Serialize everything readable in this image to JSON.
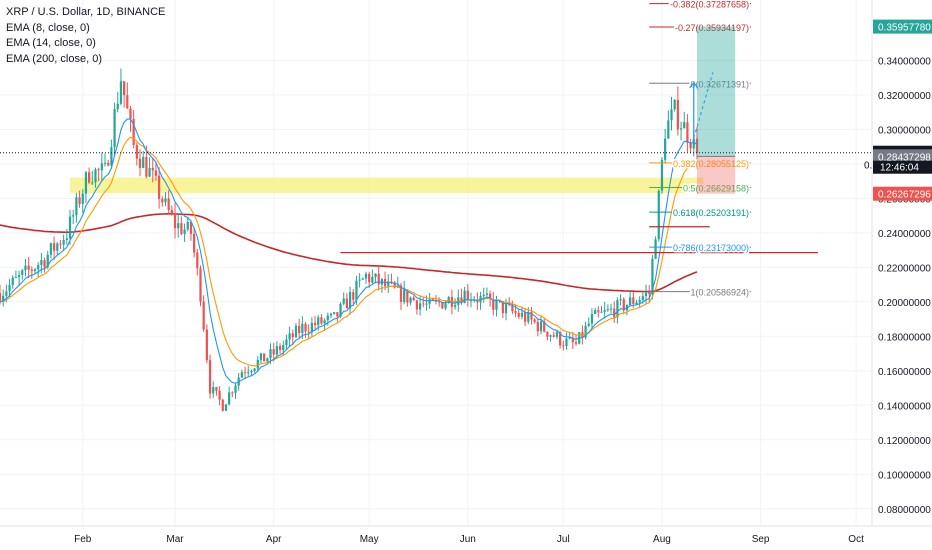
{
  "header": {
    "symbol_line": "XRP / U.S. Dollar, 1D, BINANCE",
    "ema_lines": [
      "EMA (8, close, 0)",
      "EMA (14, close, 0)",
      "EMA (200, close, 0)"
    ]
  },
  "colors": {
    "up": "#26a69a",
    "down": "#ef5350",
    "ema8": "#2196f3",
    "ema14": "#ff9800",
    "ema200": "#c62828",
    "zone": "#f5f07a",
    "price_tag": "#131722",
    "target_tag": "#26a69a",
    "stop_tag": "#ef5350",
    "grey_tag": "#787b86"
  },
  "chart_data": {
    "type": "candlestick",
    "title": "XRP / U.S. Dollar, 1D, BINANCE",
    "ylim": [
      0.07,
      0.375
    ],
    "y_ticks": [
      "0.34000000",
      "0.32000000",
      "0.30000000",
      "0.28000000",
      "0.26000000",
      "0.24000000",
      "0.22000000",
      "0.20000000",
      "0.18000000",
      "0.16000000",
      "0.14000000",
      "0.12000000",
      "0.10000000",
      "0.08000000"
    ],
    "y_tick_values": [
      0.34,
      0.32,
      0.3,
      0.28,
      0.26,
      0.24,
      0.22,
      0.2,
      0.18,
      0.16,
      0.14,
      0.12,
      0.1,
      0.08
    ],
    "x_ticks": [
      "Feb",
      "Mar",
      "Apr",
      "May",
      "Jun",
      "Jul",
      "Aug",
      "Sep",
      "Oct"
    ],
    "x_tick_dates": [
      "2020-02-01",
      "2020-03-01",
      "2020-04-01",
      "2020-05-01",
      "2020-06-01",
      "2020-07-01",
      "2020-08-01",
      "2020-09-01",
      "2020-10-01"
    ],
    "x_range": [
      "2020-01-06",
      "2020-10-06"
    ],
    "price_path": [
      [
        "2020-01-06",
        0.205
      ],
      [
        "2020-01-13",
        0.215
      ],
      [
        "2020-01-20",
        0.225
      ],
      [
        "2020-01-27",
        0.24
      ],
      [
        "2020-02-03",
        0.275
      ],
      [
        "2020-02-08",
        0.275
      ],
      [
        "2020-02-13",
        0.33
      ],
      [
        "2020-02-17",
        0.29
      ],
      [
        "2020-02-22",
        0.275
      ],
      [
        "2020-02-27",
        0.255
      ],
      [
        "2020-03-01",
        0.245
      ],
      [
        "2020-03-06",
        0.24
      ],
      [
        "2020-03-09",
        0.205
      ],
      [
        "2020-03-12",
        0.15
      ],
      [
        "2020-03-16",
        0.14
      ],
      [
        "2020-03-22",
        0.16
      ],
      [
        "2020-04-01",
        0.17
      ],
      [
        "2020-04-10",
        0.185
      ],
      [
        "2020-04-20",
        0.19
      ],
      [
        "2020-04-30",
        0.215
      ],
      [
        "2020-05-10",
        0.205
      ],
      [
        "2020-05-20",
        0.197
      ],
      [
        "2020-05-31",
        0.205
      ],
      [
        "2020-06-10",
        0.198
      ],
      [
        "2020-06-20",
        0.19
      ],
      [
        "2020-07-01",
        0.177
      ],
      [
        "2020-07-05",
        0.175
      ],
      [
        "2020-07-10",
        0.19
      ],
      [
        "2020-07-20",
        0.198
      ],
      [
        "2020-07-28",
        0.205
      ],
      [
        "2020-07-31",
        0.26
      ],
      [
        "2020-08-02",
        0.3
      ],
      [
        "2020-08-05",
        0.31
      ],
      [
        "2020-08-10",
        0.295
      ],
      [
        "2020-08-12",
        0.2864
      ]
    ],
    "last_price": 0.28644047,
    "last_price_label": "0.28644047",
    "countdown": "12:46:04",
    "axis_tags": [
      {
        "value": 0.3595778,
        "label": "0.35957780",
        "style": "target"
      },
      {
        "value": 0.28644047,
        "label": "0.28644047",
        "style": "last"
      },
      {
        "value": 0.28437298,
        "label": "0.28437298",
        "style": "grey"
      },
      {
        "value": 0.26267296,
        "label": "0.26267296",
        "style": "stop"
      }
    ],
    "fib_levels": [
      {
        "label": "-0.382(0.37287658)",
        "value": 0.37287658,
        "color": "#c62828"
      },
      {
        "label": "-0.27(0.35934197)",
        "value": 0.35934197,
        "color": "#c62828"
      },
      {
        "label": "0(0.32671391)",
        "value": 0.32671391,
        "color": "#787b86"
      },
      {
        "label": "0.382(0.28055125)",
        "value": 0.28055125,
        "color": "#ff9800"
      },
      {
        "label": "0.5(0.26629158)",
        "value": 0.26629158,
        "color": "#4caf50"
      },
      {
        "label": "0.618(0.25203191)",
        "value": 0.25203191,
        "color": "#009688"
      },
      {
        "label": "0.786(0.23173000)",
        "value": 0.23173,
        "color": "#2196f3"
      },
      {
        "label": "1(0.20586924)",
        "value": 0.20586924,
        "color": "#787b86"
      }
    ],
    "fib_truncated_label": "0.",
    "support_zone": {
      "low": 0.263,
      "high": 0.272
    },
    "horizontal_rays": [
      0.2285,
      0.2435
    ],
    "position_tool": {
      "entry": 0.2843,
      "target": 0.3596,
      "stop": 0.2627,
      "start": "2020-08-12",
      "end": "2020-08-24"
    }
  }
}
